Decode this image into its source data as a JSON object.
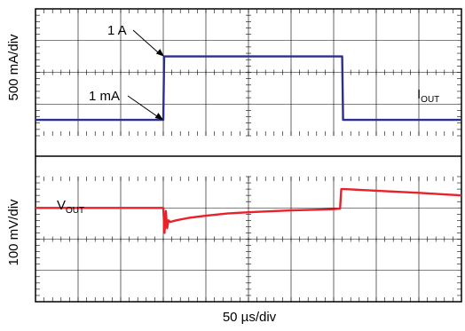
{
  "chart_data": [
    {
      "type": "line",
      "panel": "top",
      "ylabel": "500 mA/div",
      "xlabel": "50 µs/div",
      "x_divisions": 10,
      "y_divisions": 4,
      "grid": true,
      "series": [
        {
          "name": "IOUT",
          "color": "#2b2f8f",
          "x_div": [
            0,
            3.0,
            3.02,
            7.2,
            7.22,
            10
          ],
          "y_div": [
            0.5,
            0.5,
            2.5,
            2.5,
            0.5,
            0.5
          ]
        }
      ],
      "annotations": [
        {
          "text": "1 A",
          "target_x_div": 3.02,
          "target_y_div": 2.5
        },
        {
          "text": "1 mA",
          "target_x_div": 3.0,
          "target_y_div": 0.5
        }
      ]
    },
    {
      "type": "line",
      "panel": "bottom",
      "ylabel": "100 mV/div",
      "x_divisions": 10,
      "y_divisions": 4,
      "grid": true,
      "series": [
        {
          "name": "VOUT",
          "color": "#e8212a",
          "x_div": [
            0,
            3.0,
            3.03,
            3.06,
            3.09,
            3.12,
            3.16,
            3.3,
            3.6,
            4.0,
            4.5,
            5.0,
            5.5,
            6.0,
            6.5,
            7.0,
            7.15,
            7.18,
            7.25,
            8.0,
            9.0,
            10
          ],
          "y_div": [
            3.0,
            3.0,
            2.2,
            2.9,
            2.35,
            2.6,
            2.55,
            2.6,
            2.68,
            2.75,
            2.82,
            2.86,
            2.89,
            2.92,
            2.94,
            2.96,
            2.98,
            3.6,
            3.6,
            3.55,
            3.48,
            3.4
          ]
        }
      ]
    }
  ],
  "labels": {
    "iout_main": "I",
    "iout_sub": "OUT",
    "vout_main": "V",
    "vout_sub": "OUT"
  }
}
